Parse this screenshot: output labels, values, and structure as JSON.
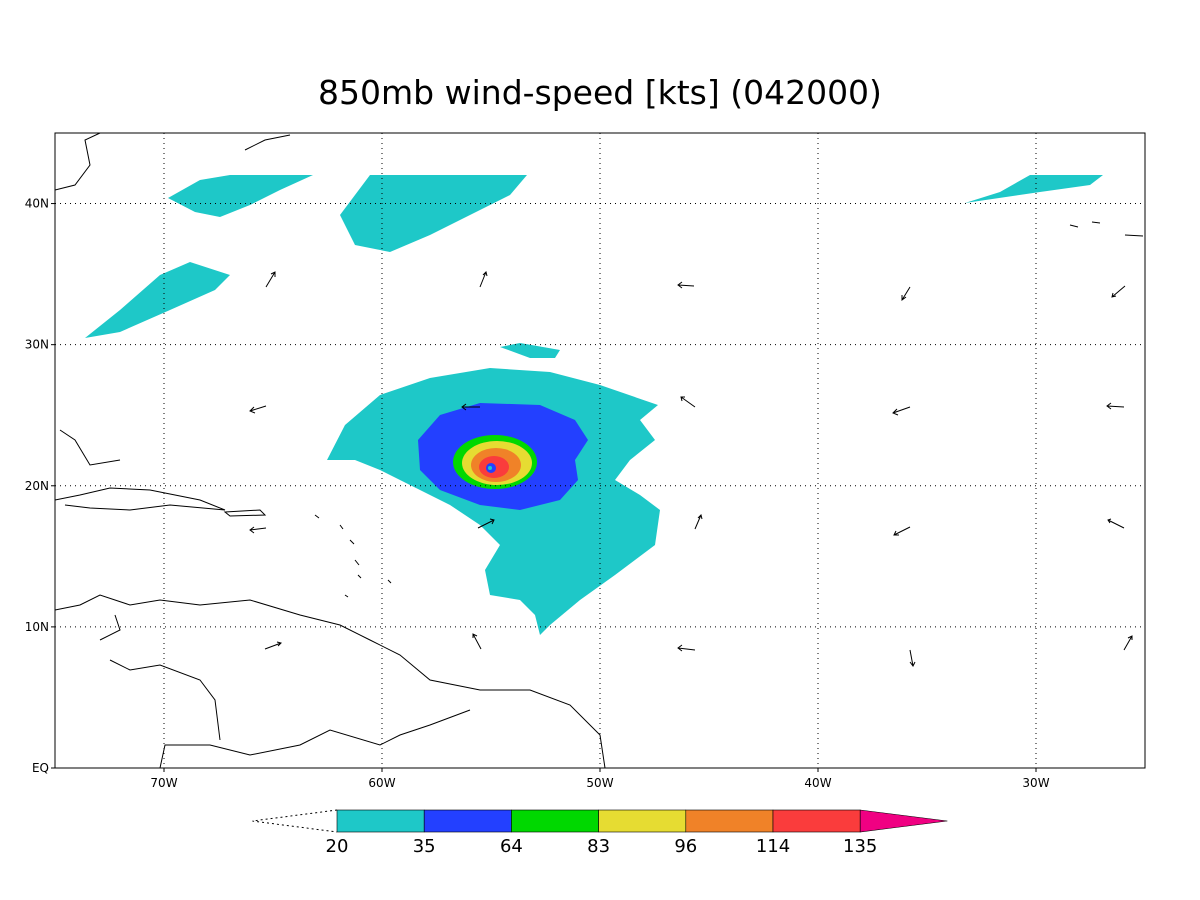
{
  "chart_data": {
    "type": "map",
    "title": "850mb wind-speed [kts] (042000)",
    "xlim": [
      -75,
      -25
    ],
    "ylim": [
      0,
      45
    ],
    "xticks": [
      {
        "value": -70,
        "label": "70W"
      },
      {
        "value": -60,
        "label": "60W"
      },
      {
        "value": -50,
        "label": "50W"
      },
      {
        "value": -40,
        "label": "40W"
      },
      {
        "value": -30,
        "label": "30W"
      }
    ],
    "yticks": [
      {
        "value": 0,
        "label": "EQ"
      },
      {
        "value": 10,
        "label": "10N"
      },
      {
        "value": 20,
        "label": "20N"
      },
      {
        "value": 30,
        "label": "30N"
      },
      {
        "value": 40,
        "label": "40N"
      }
    ],
    "grid": true,
    "colorbar": {
      "levels": [
        20,
        35,
        64,
        83,
        96,
        114,
        135
      ],
      "colors": [
        "#1ec8c8",
        "#2340ff",
        "#00d800",
        "#e6dc32",
        "#f08228",
        "#fa3c3c",
        "#f00082"
      ]
    }
  }
}
